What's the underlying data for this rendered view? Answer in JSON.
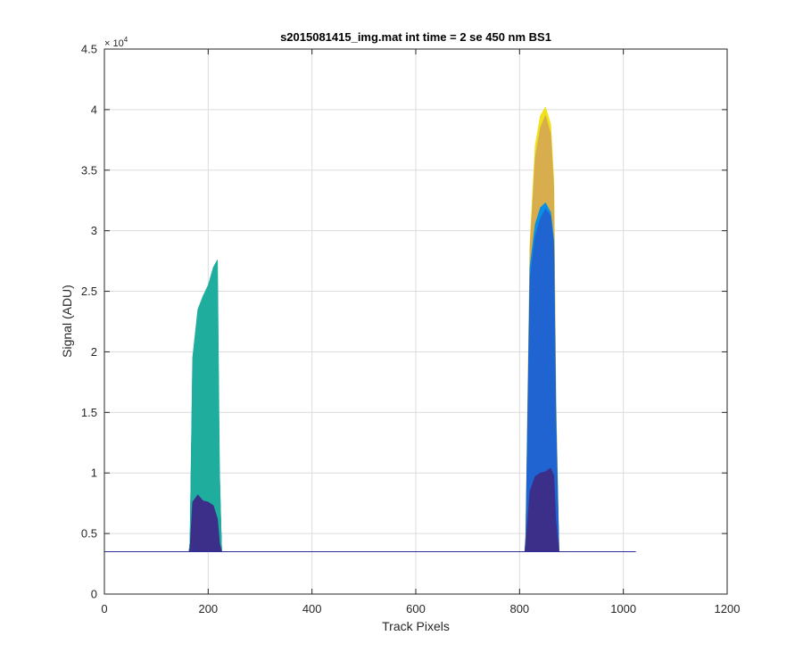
{
  "chart_data": {
    "type": "area",
    "title": "s2015081415_img.mat int time = 2 se  450 nm BS1",
    "xlabel": "Track Pixels",
    "ylabel": "Signal (ADU)",
    "y_exponent_label": "× 10",
    "y_exponent_power": "4",
    "xlim": [
      0,
      1200
    ],
    "ylim": [
      0,
      45000
    ],
    "xticks": [
      0,
      200,
      400,
      600,
      800,
      1000,
      1200
    ],
    "xtick_labels": [
      "0",
      "200",
      "400",
      "600",
      "800",
      "1000",
      "1200"
    ],
    "yticks": [
      0,
      5000,
      10000,
      15000,
      20000,
      25000,
      30000,
      35000,
      40000,
      45000
    ],
    "ytick_labels": [
      "0",
      "0.5",
      "1",
      "1.5",
      "2",
      "2.5",
      "3",
      "3.5",
      "4",
      "4.5"
    ],
    "grid": true,
    "baseline": 3500,
    "baseline_x_range": [
      0,
      1024
    ],
    "series": [
      {
        "color": "#3b2f8a",
        "x": [
          163,
          165,
          170,
          180,
          190,
          200,
          210,
          218,
          222,
          226,
          810,
          812,
          820,
          830,
          840,
          850,
          860,
          866,
          870,
          876
        ],
        "values": [
          3500,
          3800,
          7600,
          8200,
          7700,
          7600,
          7300,
          6200,
          4200,
          3500,
          3500,
          4000,
          8500,
          9700,
          10000,
          10100,
          10400,
          9800,
          6000,
          3500
        ]
      },
      {
        "color": "#1f64d1",
        "x": [
          163,
          165,
          170,
          180,
          190,
          200,
          210,
          218,
          222,
          226,
          810,
          812,
          820,
          830,
          840,
          850,
          860,
          866,
          870,
          876
        ],
        "values": [
          3500,
          4200,
          17500,
          19200,
          19800,
          20600,
          21800,
          18800,
          9000,
          3500,
          3500,
          4500,
          26000,
          29500,
          31000,
          31800,
          31200,
          28600,
          14000,
          3500
        ]
      },
      {
        "color": "#0a8fe6",
        "x": [
          163,
          165,
          170,
          180,
          190,
          200,
          210,
          218,
          222,
          226,
          810,
          812,
          820,
          830,
          840,
          850,
          860,
          866,
          870,
          876
        ],
        "values": [
          3500,
          4300,
          18500,
          20200,
          20700,
          21300,
          22000,
          19800,
          9500,
          3500,
          3500,
          4700,
          27000,
          30500,
          31900,
          32300,
          31500,
          29200,
          15000,
          3500
        ]
      },
      {
        "color": "#1fad9e",
        "x": [
          163,
          165,
          170,
          180,
          190,
          200,
          210,
          218,
          222,
          226
        ],
        "values": [
          3500,
          4400,
          19500,
          23500,
          24600,
          25500,
          27000,
          27600,
          10000,
          3500
        ]
      },
      {
        "color": "#d7ad4e",
        "x": [
          810,
          812,
          820,
          830,
          840,
          850,
          860,
          866,
          870,
          876
        ],
        "values": [
          3500,
          5000,
          28500,
          36000,
          38500,
          39500,
          38000,
          33500,
          16000,
          3500
        ]
      },
      {
        "color": "#f0e11a",
        "x": [
          810,
          812,
          820,
          830,
          840,
          850,
          860,
          866,
          870,
          876
        ],
        "values": [
          3500,
          5100,
          29000,
          37000,
          39500,
          40200,
          38800,
          34200,
          16500,
          3500
        ]
      }
    ]
  }
}
